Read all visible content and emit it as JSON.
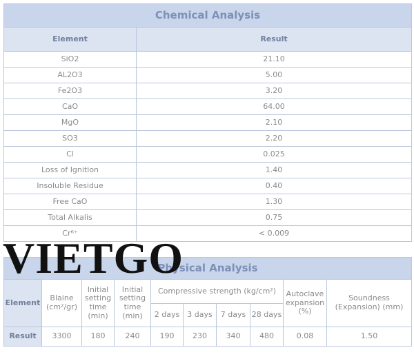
{
  "chemical": {
    "title": "Chemical Analysis",
    "headers": [
      "Element",
      "Result"
    ],
    "rows": [
      [
        "SiO2",
        "21.10"
      ],
      [
        "AL2O3",
        "5.00"
      ],
      [
        "Fe2O3",
        "3.20"
      ],
      [
        "CaO",
        "64.00"
      ],
      [
        "MgO",
        "2.10"
      ],
      [
        "SO3",
        "2.20"
      ],
      [
        "Cl",
        "0.025"
      ],
      [
        "Loss of Ignition",
        "1.40"
      ],
      [
        "Insoluble Residue",
        "0.40"
      ],
      [
        "Free CaO",
        "1.30"
      ],
      [
        "Total Alkalis",
        "0.75"
      ],
      [
        "Cr⁶⁺",
        "< 0.009"
      ]
    ]
  },
  "watermark": "VIETGO",
  "physical": {
    "title": "Physical Analysis",
    "headers": {
      "element": "Element",
      "blaine": "Blaine (cm²/gr)",
      "initial": "Initial setting time (min)",
      "final": "Initial setting time (min)",
      "compressive": "Compressive strength (kg/cm²)",
      "days": [
        "2 days",
        "3 days",
        "7 days",
        "28 days"
      ],
      "autoclave": "Autoclave expansion (%)",
      "soundness": "Soundness (Expansion) (mm)"
    },
    "result": [
      "Result",
      "3300",
      "180",
      "240",
      "190",
      "230",
      "340",
      "480",
      "0.08",
      "1.50"
    ]
  }
}
